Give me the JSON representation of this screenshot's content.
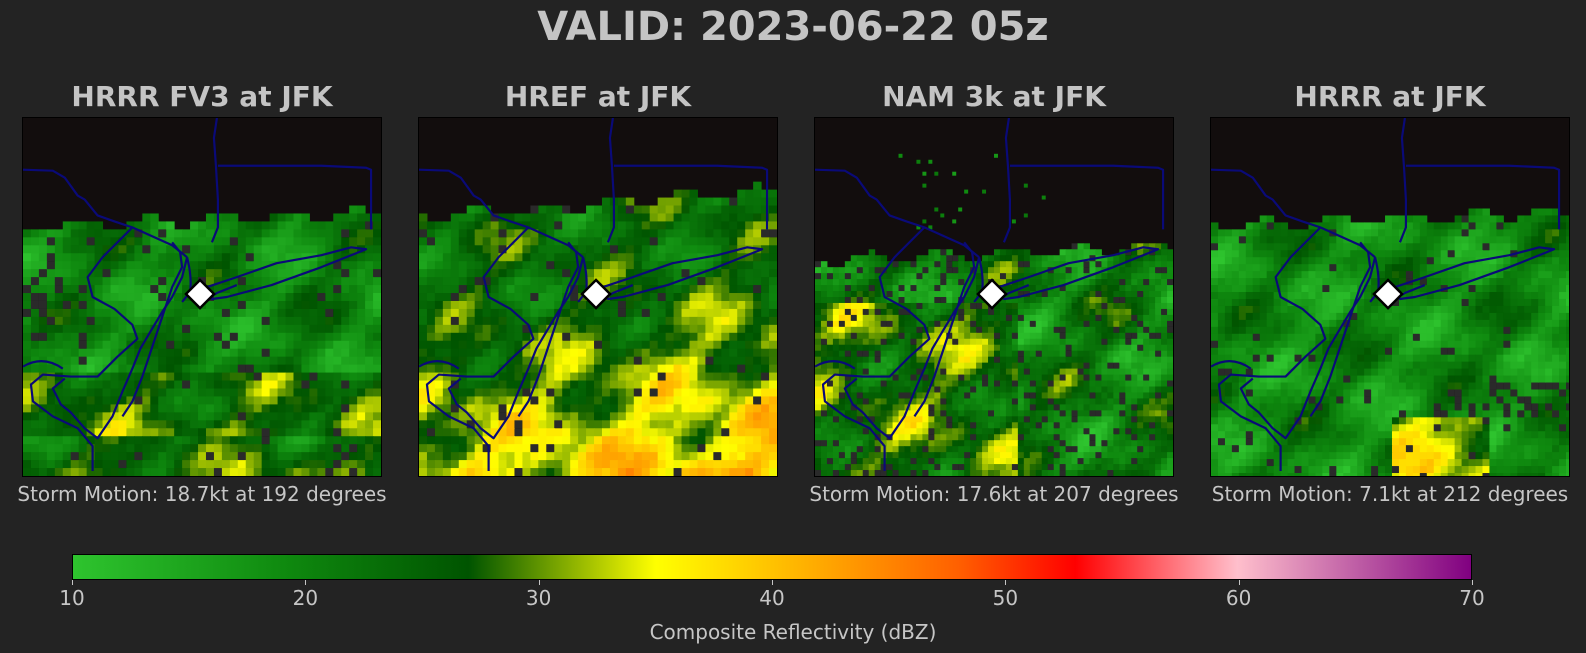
{
  "title": "VALID: 2023-06-22 05z",
  "station_marker_icon": "diamond-icon",
  "panels": [
    {
      "title": "HRRR FV3 at JFK",
      "storm_motion": "Storm Motion: 18.7kt at 192 degrees",
      "style": "blocky-green"
    },
    {
      "title": "HREF at JFK",
      "storm_motion": "",
      "style": "blocky-yellow"
    },
    {
      "title": "NAM 3k at JFK",
      "storm_motion": "Storm Motion: 17.6kt at 207 degrees",
      "style": "speckled"
    },
    {
      "title": "HRRR at JFK",
      "storm_motion": "Storm Motion: 7.1kt at 212 degrees",
      "style": "smooth"
    }
  ],
  "colorbar": {
    "label": "Composite Reflectivity (dBZ)",
    "range": [
      10,
      70
    ],
    "ticks": [
      "10",
      "20",
      "30",
      "40",
      "50",
      "60",
      "70"
    ],
    "stops": [
      {
        "value": 10,
        "color": "#2ec42e"
      },
      {
        "value": 19,
        "color": "#0f8a0f"
      },
      {
        "value": 27,
        "color": "#005400"
      },
      {
        "value": 35,
        "color": "#ffff00"
      },
      {
        "value": 42,
        "color": "#ffaa00"
      },
      {
        "value": 48,
        "color": "#ff6000"
      },
      {
        "value": 53,
        "color": "#ff0000"
      },
      {
        "value": 60,
        "color": "#ffbfcc"
      },
      {
        "value": 70,
        "color": "#800080"
      }
    ]
  }
}
